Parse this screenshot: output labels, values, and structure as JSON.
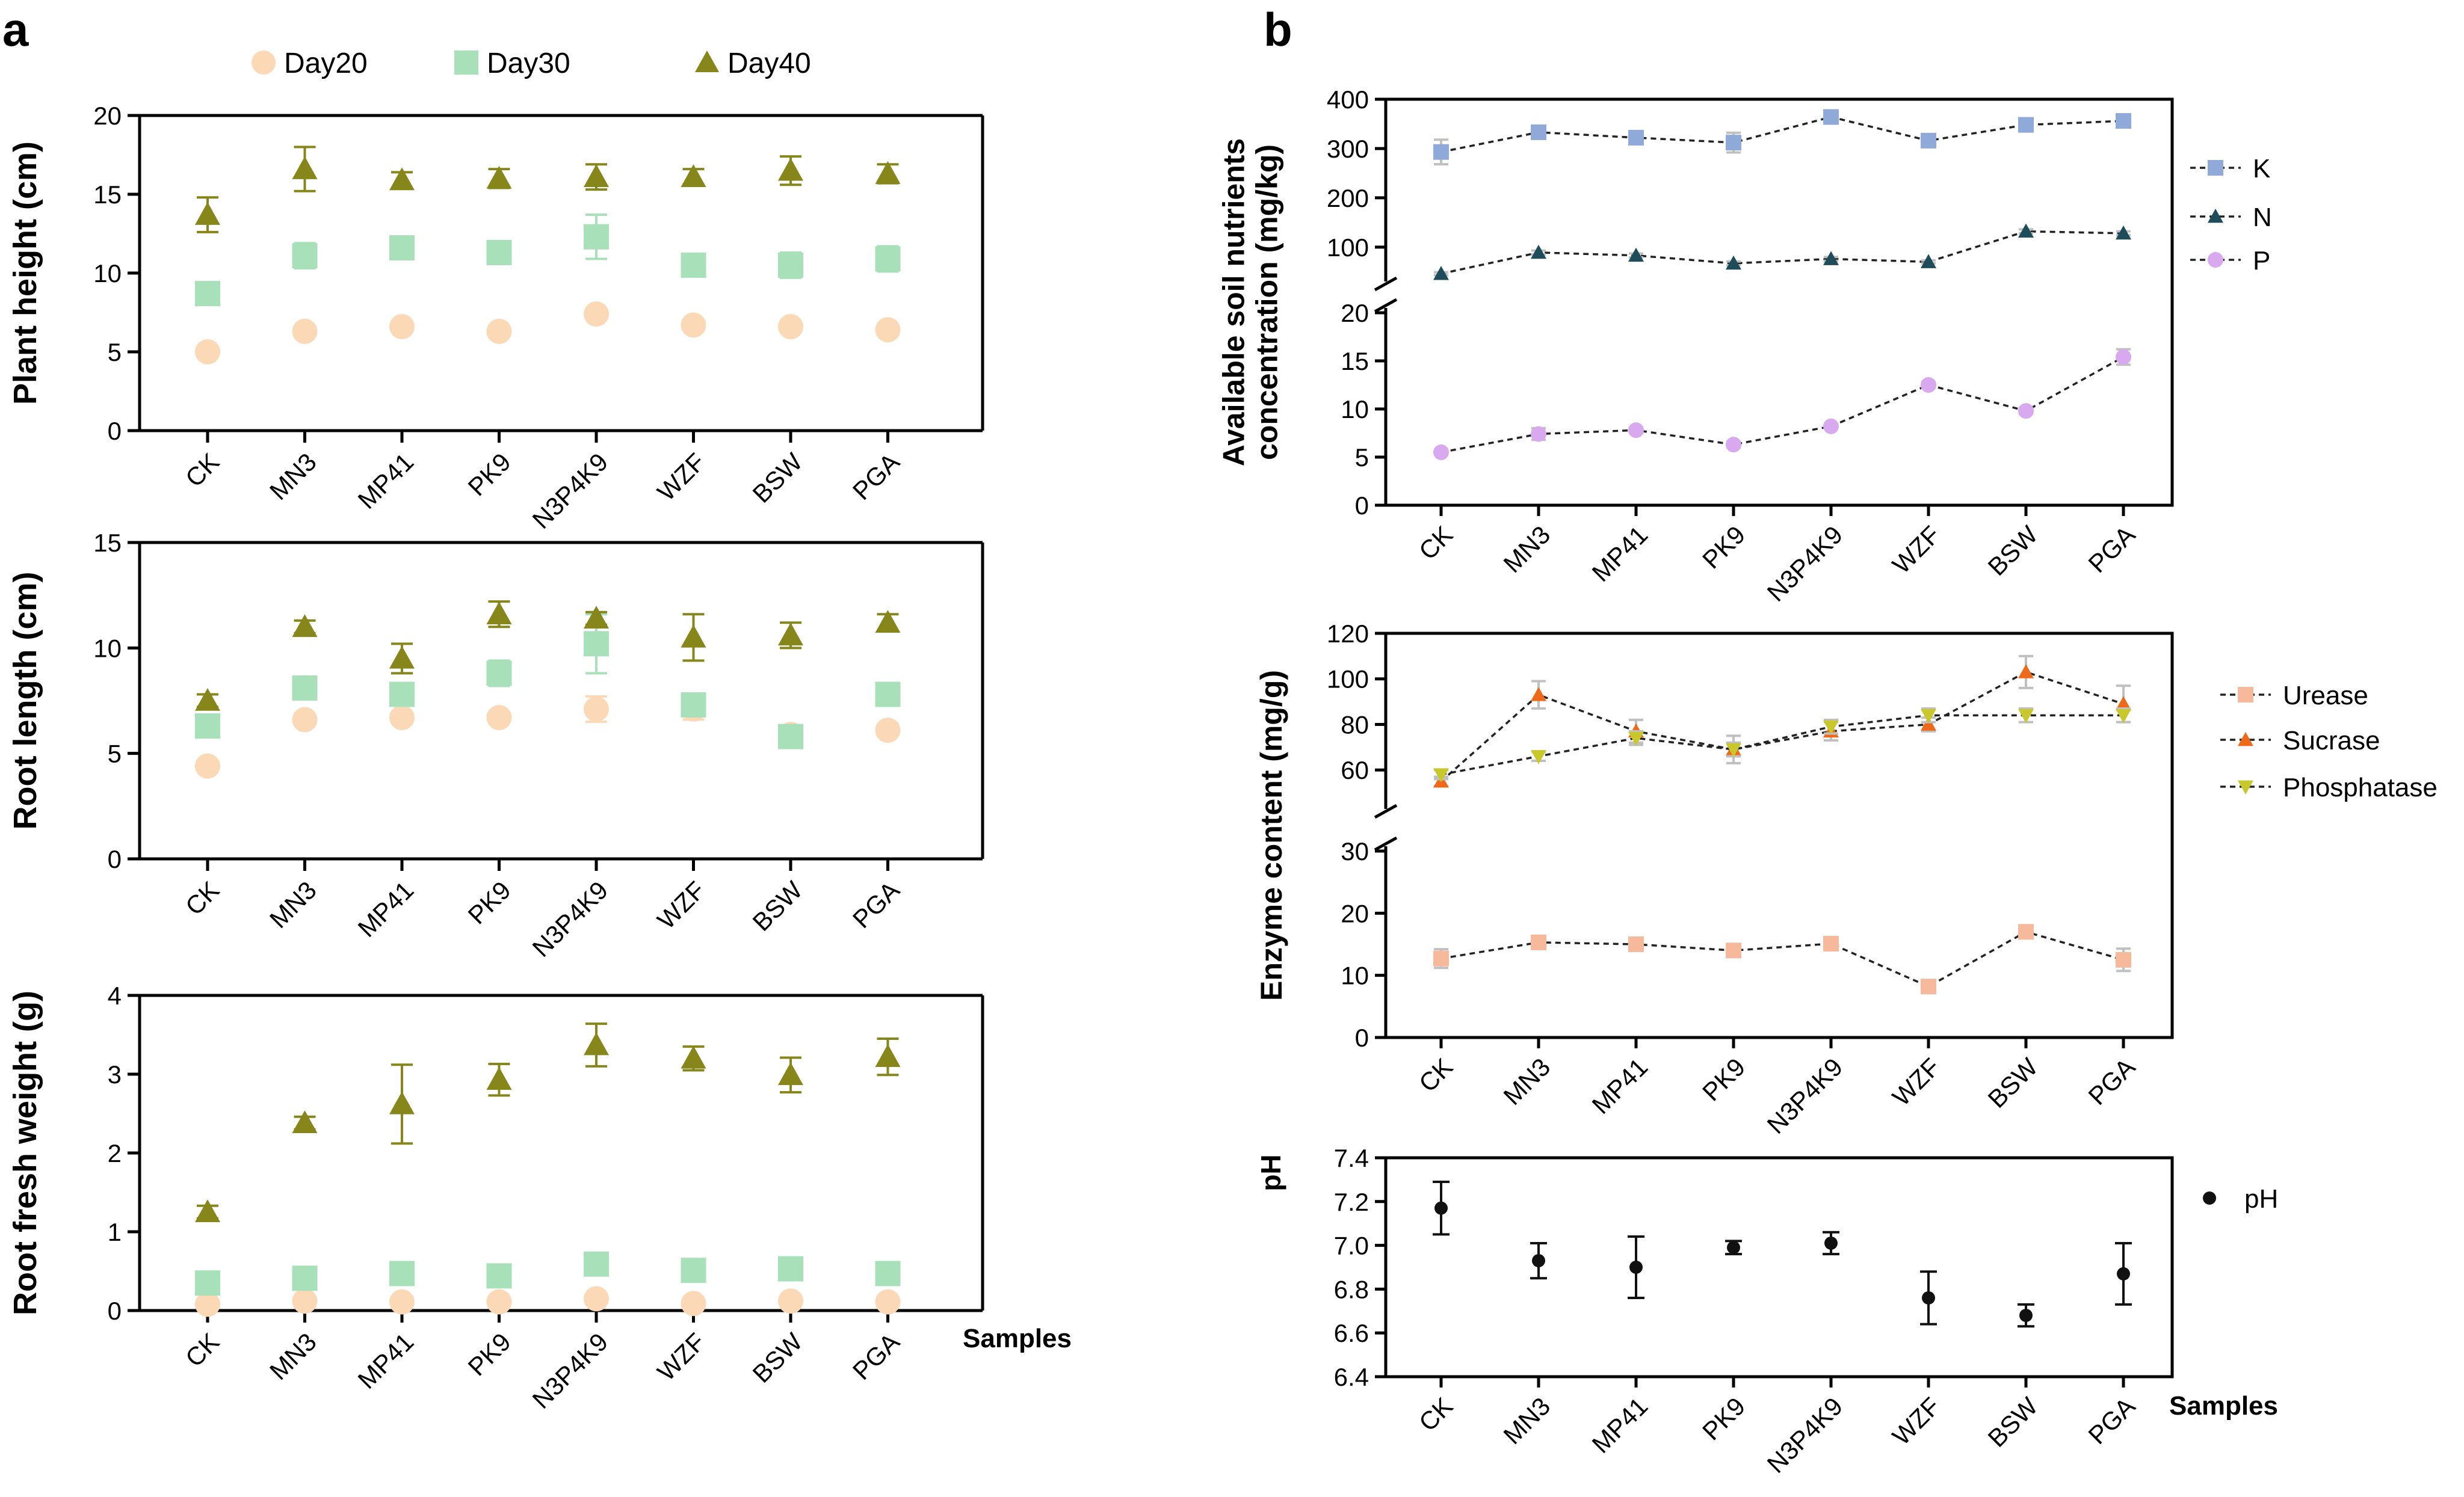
{
  "colors": {
    "day20": "#FBD9B7",
    "day30": "#A8E0BA",
    "day40": "#86861A",
    "K": "#8FA9D8",
    "N": "#1E4C5A",
    "P": "#D8A9EE",
    "urease": "#F6B99C",
    "sucrase": "#EE6A1A",
    "phosphatase": "#C8C72C",
    "pH": "#111111",
    "errbar_b": "#C0C0C0"
  },
  "panel_a": {
    "letter": "a",
    "legend": [
      "Day20",
      "Day30",
      "Day40"
    ],
    "samples_label": "Samples"
  },
  "panel_b": {
    "letter": "b",
    "samples_label": "Samples"
  },
  "chart_data": [
    {
      "id": "plant-height",
      "type": "scatter",
      "title": "",
      "ylabel": "Plant height (cm)",
      "xlabel": "",
      "ylim": [
        0,
        20
      ],
      "yticks": [
        "0",
        "5",
        "10",
        "15",
        "20"
      ],
      "categories": [
        "CK",
        "MN3",
        "MP41",
        "PK9",
        "N3P4K9",
        "WZF",
        "BSW",
        "PGA"
      ],
      "series": [
        {
          "name": "Day20",
          "values": [
            5.0,
            6.3,
            6.6,
            6.3,
            7.4,
            6.7,
            6.6,
            6.4
          ],
          "errors": [
            0.2,
            0.3,
            0.3,
            0.3,
            0.3,
            0.3,
            0.3,
            0.3
          ]
        },
        {
          "name": "Day30",
          "values": [
            8.7,
            11.1,
            11.6,
            11.3,
            12.3,
            10.5,
            10.5,
            10.9
          ],
          "errors": [
            0.3,
            0.8,
            0.6,
            0.4,
            1.4,
            0.6,
            0.8,
            0.8
          ]
        },
        {
          "name": "Day40",
          "values": [
            13.7,
            16.6,
            15.9,
            16.0,
            16.1,
            16.1,
            16.5,
            16.3
          ],
          "errors": [
            1.1,
            1.4,
            0.5,
            0.6,
            0.8,
            0.5,
            0.9,
            0.6
          ]
        }
      ]
    },
    {
      "id": "root-length",
      "type": "scatter",
      "title": "",
      "ylabel": "Root length (cm)",
      "xlabel": "",
      "ylim": [
        0,
        15
      ],
      "yticks": [
        "0",
        "5",
        "10",
        "15"
      ],
      "categories": [
        "CK",
        "MN3",
        "MP41",
        "PK9",
        "N3P4K9",
        "WZF",
        "BSW",
        "PGA"
      ],
      "series": [
        {
          "name": "Day20",
          "values": [
            4.4,
            6.6,
            6.7,
            6.7,
            7.1,
            7.1,
            5.9,
            6.1
          ],
          "errors": [
            0.1,
            0.2,
            0.2,
            0.2,
            0.6,
            0.5,
            0.3,
            0.3
          ]
        },
        {
          "name": "Day30",
          "values": [
            6.3,
            8.1,
            7.8,
            8.8,
            10.2,
            7.3,
            5.8,
            7.8
          ],
          "errors": [
            0.2,
            0.2,
            0.3,
            0.6,
            1.4,
            0.4,
            0.3,
            0.2
          ]
        },
        {
          "name": "Day40",
          "values": [
            7.5,
            11.0,
            9.5,
            11.6,
            11.4,
            10.5,
            10.6,
            11.2
          ],
          "errors": [
            0.3,
            0.3,
            0.7,
            0.6,
            0.3,
            1.1,
            0.6,
            0.4
          ]
        }
      ]
    },
    {
      "id": "root-fresh-weight",
      "type": "scatter",
      "title": "",
      "ylabel": "Root fresh weight (g)",
      "xlabel": "Samples",
      "ylim": [
        0,
        4
      ],
      "yticks": [
        "0",
        "1",
        "2",
        "3",
        "4"
      ],
      "categories": [
        "CK",
        "MN3",
        "MP41",
        "PK9",
        "N3P4K9",
        "WZF",
        "BSW",
        "PGA"
      ],
      "series": [
        {
          "name": "Day20",
          "values": [
            0.08,
            0.12,
            0.11,
            0.11,
            0.15,
            0.09,
            0.12,
            0.11
          ],
          "errors": [
            0.01,
            0.01,
            0.01,
            0.01,
            0.01,
            0.01,
            0.01,
            0.01
          ]
        },
        {
          "name": "Day30",
          "values": [
            0.35,
            0.41,
            0.47,
            0.44,
            0.59,
            0.51,
            0.53,
            0.47
          ],
          "errors": [
            0.03,
            0.03,
            0.03,
            0.03,
            0.04,
            0.03,
            0.03,
            0.03
          ]
        },
        {
          "name": "Day40",
          "values": [
            1.25,
            2.38,
            2.62,
            2.93,
            3.37,
            3.2,
            2.99,
            3.22
          ],
          "errors": [
            0.08,
            0.08,
            0.5,
            0.2,
            0.27,
            0.15,
            0.22,
            0.23
          ]
        }
      ]
    },
    {
      "id": "soil-nutrients",
      "type": "line",
      "title": "",
      "ylabel": "Available soil nutrients concentration  (mg/kg)",
      "ylabel_lines": [
        "Available soil nutrients",
        "concentration  (mg/kg)"
      ],
      "xlabel": "",
      "ylim_upper": [
        40,
        400
      ],
      "yticks_upper": [
        "100",
        "200",
        "300",
        "400"
      ],
      "ylim_lower": [
        0,
        20
      ],
      "yticks_lower": [
        "0",
        "5",
        "10",
        "15",
        "20"
      ],
      "categories": [
        "CK",
        "MN3",
        "MP41",
        "PK9",
        "N3P4K9",
        "WZF",
        "BSW",
        "PGA"
      ],
      "series": [
        {
          "name": "K",
          "segment": "upper",
          "values": [
            293,
            333,
            322,
            312,
            364,
            316,
            348,
            356
          ],
          "errors": [
            25,
            5,
            5,
            20,
            5,
            12,
            6,
            5
          ]
        },
        {
          "name": "N",
          "segment": "upper",
          "values": [
            46,
            89,
            83,
            67,
            76,
            70,
            132,
            128
          ],
          "errors": [
            3,
            4,
            4,
            4,
            4,
            3,
            4,
            4
          ]
        },
        {
          "name": "P",
          "segment": "lower",
          "values": [
            5.5,
            7.4,
            7.8,
            6.3,
            8.2,
            12.5,
            9.8,
            15.4
          ],
          "errors": [
            0.2,
            0.6,
            0.3,
            0.3,
            0.2,
            0.3,
            0.3,
            0.8
          ]
        }
      ]
    },
    {
      "id": "enzyme-content",
      "type": "line",
      "title": "",
      "ylabel": "Enzyme content (mg/g)",
      "xlabel": "",
      "ylim_upper": [
        45,
        120
      ],
      "yticks_upper": [
        "60",
        "80",
        "100",
        "120"
      ],
      "ylim_lower": [
        0,
        30
      ],
      "yticks_lower": [
        "0",
        "10",
        "20",
        "30"
      ],
      "categories": [
        "CK",
        "MN3",
        "MP41",
        "PK9",
        "N3P4K9",
        "WZF",
        "BSW",
        "PGA"
      ],
      "series": [
        {
          "name": "Urease",
          "segment": "lower",
          "values": [
            12.7,
            15.3,
            15.0,
            14.0,
            15.1,
            8.2,
            17.0,
            12.5
          ],
          "errors": [
            1.5,
            0.5,
            0.5,
            0.5,
            0.5,
            0.5,
            0.5,
            1.8
          ]
        },
        {
          "name": "Sucrase",
          "segment": "upper",
          "values": [
            55,
            93,
            77,
            69,
            77,
            80,
            103,
            89
          ],
          "errors": [
            2,
            6,
            5,
            6,
            4,
            3,
            7,
            8
          ]
        },
        {
          "name": "Phosphatase",
          "segment": "upper",
          "values": [
            58,
            66,
            74,
            69,
            79,
            84,
            84,
            84
          ],
          "errors": [
            2,
            2,
            3,
            3,
            3,
            3,
            3,
            3
          ]
        }
      ]
    },
    {
      "id": "ph",
      "type": "scatter",
      "title": "",
      "ylabel": "pH",
      "xlabel": "Samples",
      "ylim": [
        6.4,
        7.4
      ],
      "yticks": [
        "6.4",
        "6.6",
        "6.8",
        "7.0",
        "7.2",
        "7.4"
      ],
      "categories": [
        "CK",
        "MN3",
        "MP41",
        "PK9",
        "N3P4K9",
        "WZF",
        "BSW",
        "PGA"
      ],
      "series": [
        {
          "name": "pH",
          "values": [
            7.17,
            6.93,
            6.9,
            6.99,
            7.01,
            6.76,
            6.68,
            6.87
          ],
          "errors": [
            0.12,
            0.08,
            0.14,
            0.03,
            0.05,
            0.12,
            0.05,
            0.14
          ]
        }
      ]
    }
  ]
}
